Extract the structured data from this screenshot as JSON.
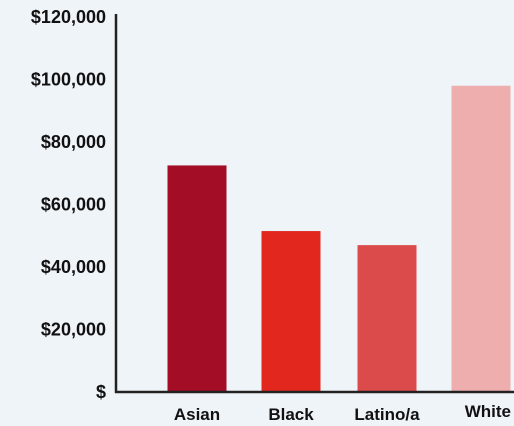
{
  "chart_data": {
    "type": "bar",
    "title": "",
    "xlabel": "",
    "ylabel": "",
    "categories": [
      "Asian",
      "Black",
      "Latino/a",
      "White"
    ],
    "values": [
      72500,
      51500,
      47000,
      98000
    ],
    "bar_colors": [
      "#a30e26",
      "#e2271e",
      "#dc4b4b",
      "#efaeae"
    ],
    "ylim": [
      0,
      120000
    ],
    "y_ticks": [
      0,
      20000,
      40000,
      60000,
      80000,
      100000,
      120000
    ],
    "y_tick_labels": [
      "$",
      "$20,000",
      "$40,000",
      "$60,000",
      "$80,000",
      "$100,000",
      "$120,000"
    ],
    "grid": false,
    "legend": "none"
  },
  "colors": {
    "background": "#eff4f9",
    "axis": "#222222",
    "text": "#111111"
  }
}
